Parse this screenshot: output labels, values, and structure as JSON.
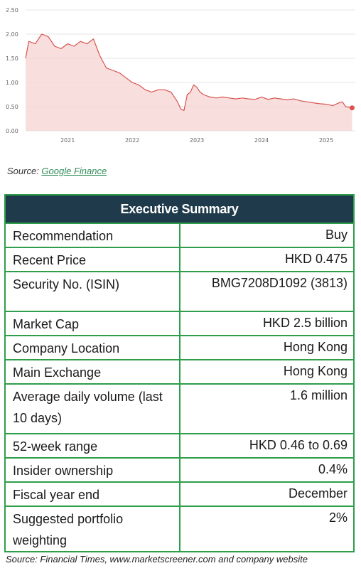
{
  "chart_data": {
    "type": "area",
    "title": "",
    "xlabel": "",
    "ylabel": "",
    "ylim": [
      0,
      2.5
    ],
    "y_ticks": [
      "0.00",
      "0.50",
      "1.00",
      "1.50",
      "2.00",
      "2.50"
    ],
    "x_ticks": [
      "2021",
      "2022",
      "2023",
      "2024",
      "2025"
    ],
    "grid": true,
    "line_color": "#d9534f",
    "fill_color": "#f6d4d2",
    "marker_color": "#d9534f",
    "x": [
      2020.35,
      2020.4,
      2020.5,
      2020.6,
      2020.7,
      2020.8,
      2020.9,
      2021.0,
      2021.1,
      2021.2,
      2021.3,
      2021.4,
      2021.5,
      2021.6,
      2021.7,
      2021.8,
      2021.9,
      2022.0,
      2022.1,
      2022.2,
      2022.3,
      2022.4,
      2022.5,
      2022.6,
      2022.7,
      2022.75,
      2022.8,
      2022.85,
      2022.9,
      2022.95,
      2023.0,
      2023.05,
      2023.1,
      2023.2,
      2023.3,
      2023.4,
      2023.5,
      2023.6,
      2023.7,
      2023.8,
      2023.9,
      2024.0,
      2024.1,
      2024.2,
      2024.3,
      2024.4,
      2024.5,
      2024.6,
      2024.7,
      2024.8,
      2024.9,
      2025.0,
      2025.1,
      2025.2,
      2025.25,
      2025.3,
      2025.4
    ],
    "values": [
      1.5,
      1.85,
      1.8,
      2.0,
      1.95,
      1.75,
      1.7,
      1.8,
      1.75,
      1.85,
      1.8,
      1.9,
      1.55,
      1.3,
      1.25,
      1.2,
      1.1,
      1.0,
      0.95,
      0.85,
      0.8,
      0.85,
      0.85,
      0.8,
      0.6,
      0.45,
      0.42,
      0.75,
      0.8,
      0.95,
      0.9,
      0.8,
      0.75,
      0.7,
      0.68,
      0.7,
      0.68,
      0.66,
      0.68,
      0.66,
      0.65,
      0.7,
      0.65,
      0.68,
      0.66,
      0.64,
      0.66,
      0.62,
      0.6,
      0.58,
      0.56,
      0.55,
      0.52,
      0.58,
      0.6,
      0.5,
      0.475
    ]
  },
  "source_top": {
    "prefix": "Source: ",
    "link": "Google Finance"
  },
  "table": {
    "header": "Executive Summary",
    "rows": [
      {
        "label": "Recommendation",
        "value": "Buy"
      },
      {
        "label": "Recent Price",
        "value": "HKD 0.475"
      },
      {
        "label": "Security No. (ISIN)",
        "value": "BMG7208D1092 (3813)"
      },
      {
        "label": "Market Cap",
        "value": "HKD 2.5 billion"
      },
      {
        "label": "Company Location",
        "value": "Hong Kong"
      },
      {
        "label": "Main Exchange",
        "value": "Hong Kong"
      },
      {
        "label": "Average daily volume (last 10 days)",
        "value": "1.6 million"
      },
      {
        "label": "52-week range",
        "value": "HKD 0.46 to 0.69"
      },
      {
        "label": "Insider ownership",
        "value": "0.4%"
      },
      {
        "label": "Fiscal year end",
        "value": "December"
      },
      {
        "label": "Suggested portfolio weighting",
        "value": "2%"
      }
    ]
  },
  "source_bottom": "Source: Financial Times, www.marketscreener.com and company website"
}
